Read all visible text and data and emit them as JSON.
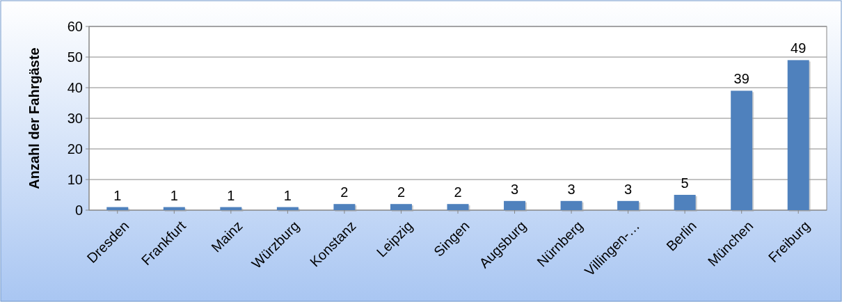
{
  "chart_data": {
    "type": "bar",
    "ylabel": "Anzahl der Fahrgäste",
    "categories": [
      "Dresden",
      "Frankfurt",
      "Mainz",
      "Würzburg",
      "Konstanz",
      "Leipzig",
      "Singen",
      "Augsburg",
      "Nürnberg",
      "Villingen-…",
      "Berlin",
      "München",
      "Freiburg"
    ],
    "values": [
      1,
      1,
      1,
      1,
      2,
      2,
      2,
      3,
      3,
      3,
      5,
      39,
      49
    ],
    "color": "#4f81bd",
    "ylim": [
      0,
      60
    ],
    "yticks": [
      0,
      10,
      20,
      30,
      40,
      50,
      60
    ],
    "grid": "y",
    "data_labels": true
  }
}
